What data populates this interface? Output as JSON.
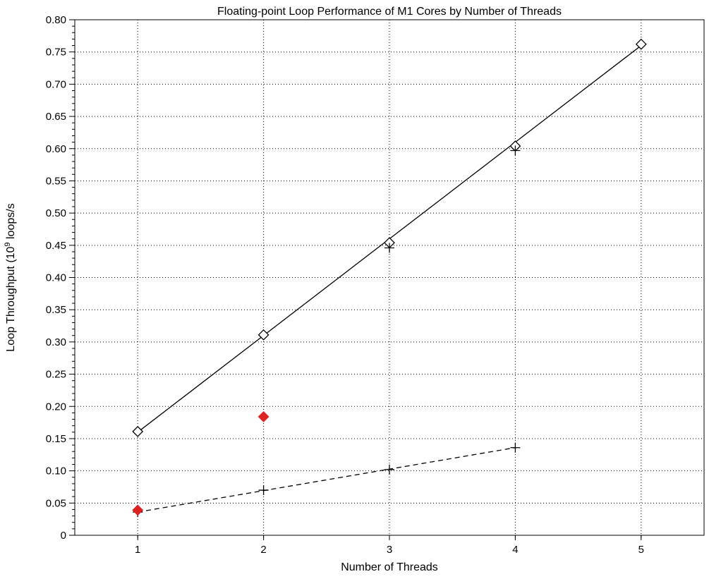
{
  "chart_data": {
    "type": "scatter",
    "title": "Floating-point Loop Performance of M1 Cores by Number of Threads",
    "xlabel": "Number of Threads",
    "ylabel_main": "Loop Throughput (10",
    "ylabel_sup": "9",
    "ylabel_tail": " loops/s",
    "xlim": [
      0.5,
      5.5
    ],
    "ylim": [
      0,
      0.8
    ],
    "x_ticks": [
      1,
      2,
      3,
      4,
      5
    ],
    "x_tick_labels": [
      "1",
      "2",
      "3",
      "4",
      "5"
    ],
    "y_ticks": [
      0,
      0.05,
      0.1,
      0.15,
      0.2,
      0.25,
      0.3,
      0.35,
      0.4,
      0.45,
      0.5,
      0.55,
      0.6,
      0.65,
      0.7,
      0.75,
      0.8
    ],
    "y_tick_labels": [
      "0",
      "0.05",
      "0.10",
      "0.15",
      "0.20",
      "0.25",
      "0.30",
      "0.35",
      "0.40",
      "0.45",
      "0.50",
      "0.55",
      "0.60",
      "0.65",
      "0.70",
      "0.75",
      "0.80"
    ],
    "grid": true,
    "series": [
      {
        "marker": "diamond-open",
        "color": "#000000",
        "x": [
          1,
          2,
          3,
          4,
          5
        ],
        "y": [
          0.161,
          0.311,
          0.454,
          0.604,
          0.762
        ]
      },
      {
        "marker": "plus",
        "color": "#000000",
        "x": [
          1,
          2,
          3,
          4
        ],
        "y": [
          0.036,
          0.07,
          0.102,
          0.136
        ]
      },
      {
        "marker": "plus",
        "color": "#000000",
        "x": [
          3,
          4
        ],
        "y": [
          0.446,
          0.597
        ]
      },
      {
        "marker": "diamond-filled",
        "color": "#dd2222",
        "x": [
          1,
          2
        ],
        "y": [
          0.039,
          0.184
        ]
      }
    ],
    "fit_lines": [
      {
        "style": "solid",
        "color": "#000000",
        "x": [
          1,
          5
        ],
        "y": [
          0.16,
          0.76
        ]
      },
      {
        "style": "dashed",
        "color": "#000000",
        "x": [
          1,
          4
        ],
        "y": [
          0.036,
          0.136
        ]
      }
    ]
  }
}
